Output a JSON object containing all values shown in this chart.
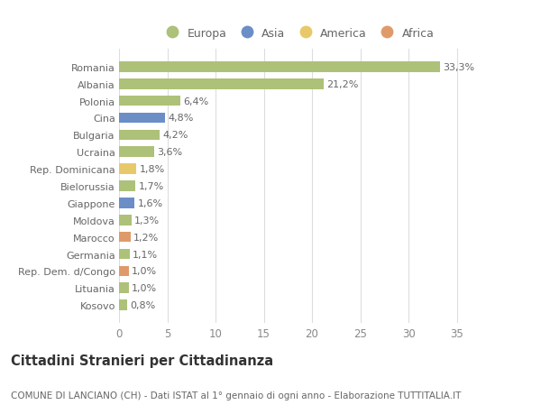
{
  "categories": [
    "Romania",
    "Albania",
    "Polonia",
    "Cina",
    "Bulgaria",
    "Ucraina",
    "Rep. Dominicana",
    "Bielorussia",
    "Giappone",
    "Moldova",
    "Marocco",
    "Germania",
    "Rep. Dem. d/Congo",
    "Lituania",
    "Kosovo"
  ],
  "values": [
    33.3,
    21.2,
    6.4,
    4.8,
    4.2,
    3.6,
    1.8,
    1.7,
    1.6,
    1.3,
    1.2,
    1.1,
    1.0,
    1.0,
    0.8
  ],
  "labels": [
    "33,3%",
    "21,2%",
    "6,4%",
    "4,8%",
    "4,2%",
    "3,6%",
    "1,8%",
    "1,7%",
    "1,6%",
    "1,3%",
    "1,2%",
    "1,1%",
    "1,0%",
    "1,0%",
    "0,8%"
  ],
  "colors": [
    "#adc178",
    "#adc178",
    "#adc178",
    "#6b8ec7",
    "#adc178",
    "#adc178",
    "#e8c96a",
    "#adc178",
    "#6b8ec7",
    "#adc178",
    "#e09a6a",
    "#adc178",
    "#e09a6a",
    "#adc178",
    "#adc178"
  ],
  "legend_labels": [
    "Europa",
    "Asia",
    "America",
    "Africa"
  ],
  "legend_colors": [
    "#adc178",
    "#6b8ec7",
    "#e8c96a",
    "#e09a6a"
  ],
  "title": "Cittadini Stranieri per Cittadinanza",
  "subtitle": "COMUNE DI LANCIANO (CH) - Dati ISTAT al 1° gennaio di ogni anno - Elaborazione TUTTITALIA.IT",
  "xlim": [
    0,
    37
  ],
  "xticks": [
    0,
    5,
    10,
    15,
    20,
    25,
    30,
    35
  ],
  "background_color": "#ffffff",
  "grid_color": "#dddddd",
  "bar_height": 0.62,
  "label_fontsize": 8.0,
  "title_fontsize": 10.5,
  "subtitle_fontsize": 7.5,
  "ytick_fontsize": 8.0,
  "xtick_fontsize": 8.5,
  "legend_fontsize": 9.0
}
